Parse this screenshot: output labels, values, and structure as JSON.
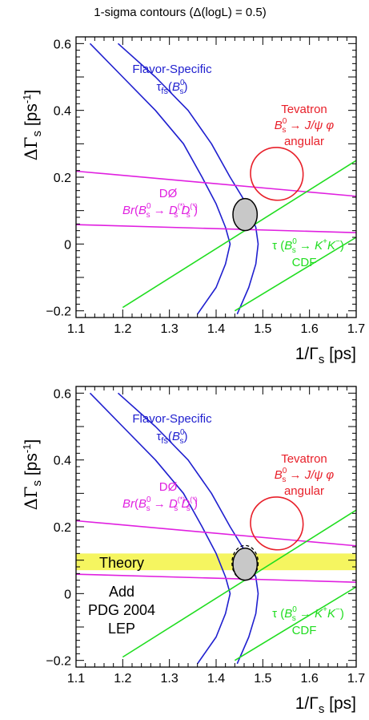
{
  "page_title": "1-sigma contours (Δ(logL) = 0.5)",
  "colors": {
    "flavor_specific": "#1f1fcf",
    "tevatron": "#e8202a",
    "d0": "#e020e0",
    "cdf": "#20dd20",
    "fit_fill": "#c8c8c8",
    "theory_band": "#f5f560"
  },
  "axes": {
    "xlabel": "1/Γs  [ps]",
    "ylabel": "ΔΓs [ps-1]",
    "xlim": [
      1.1,
      1.7
    ],
    "ylim": [
      -0.22,
      0.62
    ],
    "xticks": [
      "1.1",
      "1.2",
      "1.3",
      "1.4",
      "1.5",
      "1.6",
      "1.7"
    ],
    "yticks": [
      "−0.2",
      "0",
      "0.2",
      "0.4",
      "0.6"
    ]
  },
  "labels": {
    "flavor_specific_1": "Flavor-Specific",
    "flavor_specific_2": "τfs(B0s)",
    "tevatron_1": "Tevatron",
    "tevatron_2": "B0s → J/ψ φ",
    "tevatron_3": "angular",
    "d0_1": "DØ",
    "d0_2": "Br(B0s → D(*)s D(*)s)",
    "cdf_1": "τ (B0s → K+K−)",
    "cdf_2": "CDF",
    "theory": "Theory",
    "add_1": "Add",
    "add_2": "PDG 2004",
    "add_3": "LEP"
  },
  "chart_data": [
    {
      "type": "line",
      "title": "1-sigma contours (Δ(logL) = 0.5)",
      "xlabel": "1/Γs  [ps]",
      "ylabel": "ΔΓs [ps-1]",
      "xlim": [
        1.1,
        1.7
      ],
      "ylim": [
        -0.22,
        0.62
      ],
      "grid": false,
      "series": [
        {
          "name": "Flavor-Specific τfs(B0s)",
          "shape": "band",
          "x": [
            1.13,
            1.2,
            1.27,
            1.33,
            1.37,
            1.4,
            1.42,
            1.43,
            1.42,
            1.4,
            1.36
          ],
          "y": [
            0.6,
            0.5,
            0.4,
            0.3,
            0.2,
            0.12,
            0.05,
            0,
            -0.06,
            -0.13,
            -0.21
          ],
          "x_outer": [
            1.19,
            1.27,
            1.34,
            1.39,
            1.43,
            1.465,
            1.485,
            1.49,
            1.485,
            1.47,
            1.445
          ]
        },
        {
          "name": "Tevatron B0s → J/ψ φ angular",
          "shape": "ellipse",
          "center": [
            1.53,
            0.21
          ],
          "semi_axes": [
            0.057,
            0.078
          ],
          "angle_deg": 48
        },
        {
          "name": "DØ Br(B0s → D(*)s D(*)s)",
          "shape": "band",
          "x": [
            1.1,
            1.7
          ],
          "y_upper": [
            0.218,
            0.143
          ],
          "y_lower": [
            0.058,
            0.034
          ]
        },
        {
          "name": "τ (B0s → K+K−) CDF",
          "shape": "band",
          "x": [
            1.2,
            1.7
          ],
          "y_upper": [
            -0.19,
            0.25
          ],
          "x2": [
            1.44,
            1.7
          ],
          "y_lower": [
            -0.2,
            0.02
          ]
        },
        {
          "name": "combined fit",
          "shape": "ellipse",
          "center": [
            1.462,
            0.088
          ],
          "semi_axes": [
            0.026,
            0.048
          ],
          "angle_deg": 0
        }
      ],
      "annotations": [
        "Flavor-Specific",
        "τfs(B0s)",
        "Tevatron",
        "B0s → J/ψ φ",
        "angular",
        "DØ",
        "Br(B0s → D(*)s D(*)s)",
        "τ (B0s → K+K−)",
        "CDF"
      ]
    },
    {
      "type": "line",
      "xlabel": "1/Γs  [ps]",
      "ylabel": "ΔΓs [ps-1]",
      "xlim": [
        1.1,
        1.7
      ],
      "ylim": [
        -0.22,
        0.62
      ],
      "grid": false,
      "theory_band": [
        0.07,
        0.12
      ],
      "series": [
        {
          "name": "Flavor-Specific τfs(B0s)",
          "shape": "band"
        },
        {
          "name": "Tevatron B0s → J/ψ φ angular",
          "shape": "ellipse",
          "center": [
            1.53,
            0.21
          ],
          "semi_axes": [
            0.057,
            0.078
          ],
          "angle_deg": 48
        },
        {
          "name": "DØ Br(B0s → D(*)s D(*)s)",
          "shape": "band"
        },
        {
          "name": "τ (B0s → K+K−) CDF",
          "shape": "band"
        },
        {
          "name": "combined fit",
          "shape": "ellipse",
          "center": [
            1.462,
            0.088
          ],
          "semi_axes": [
            0.026,
            0.048
          ],
          "angle_deg": 0
        },
        {
          "name": "Add PDG 2004 LEP",
          "shape": "ellipse",
          "center": [
            1.462,
            0.092
          ],
          "semi_axes": [
            0.028,
            0.052
          ],
          "angle_deg": 0
        }
      ],
      "annotations": [
        "Flavor-Specific",
        "τfs(B0s)",
        "Tevatron",
        "B0s → J/ψ φ",
        "angular",
        "DØ",
        "Br(B0s → D(*)s D(*)s)",
        "Theory",
        "τ (B0s → K+K−)",
        "CDF",
        "Add",
        "PDG 2004",
        "LEP"
      ]
    }
  ]
}
